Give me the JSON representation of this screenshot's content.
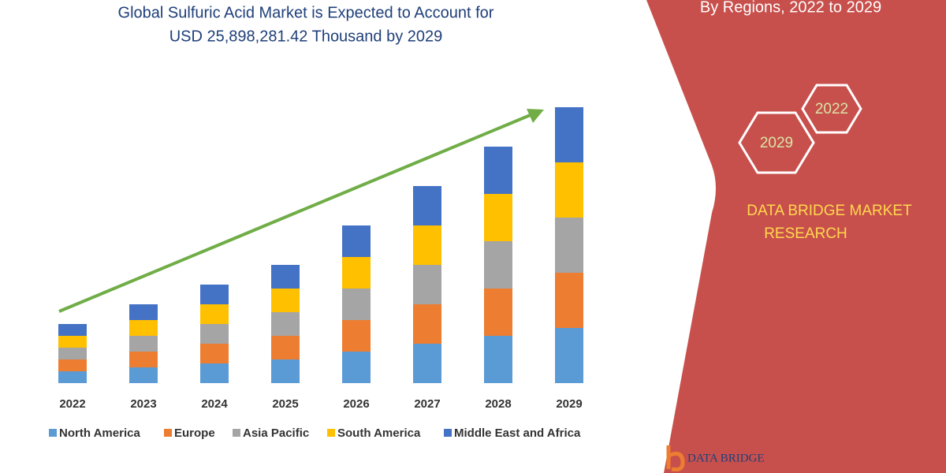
{
  "chart_data": {
    "type": "stacked-bar",
    "title": [
      "Global Sulfuric Acid Market is Expected to Account for",
      "USD 25,898,281.42 Thousand by 2029"
    ],
    "categories": [
      "2022",
      "2023",
      "2024",
      "2025",
      "2026",
      "2027",
      "2028",
      "2029"
    ],
    "series": [
      {
        "name": "North America",
        "color": "#5b9bd5",
        "values": [
          15,
          20,
          25,
          30,
          40,
          50,
          60,
          70
        ]
      },
      {
        "name": "Europe",
        "color": "#ed7d31",
        "values": [
          15,
          20,
          25,
          30,
          40,
          50,
          60,
          70
        ]
      },
      {
        "name": "Asia Pacific",
        "color": "#a5a5a5",
        "values": [
          15,
          20,
          25,
          30,
          40,
          50,
          60,
          70
        ]
      },
      {
        "name": "South America",
        "color": "#ffc000",
        "values": [
          15,
          20,
          25,
          30,
          40,
          50,
          60,
          70
        ]
      },
      {
        "name": "Middle East and Africa",
        "color": "#4472c4",
        "values": [
          15,
          20,
          25,
          30,
          40,
          50,
          60,
          70
        ]
      }
    ],
    "ylim": [
      0,
      350
    ],
    "grid": false,
    "legend": "bottom"
  },
  "panel": {
    "heading": "By Regions, 2022 to 2029",
    "hexagons": [
      "2022",
      "2029"
    ],
    "brand": [
      "DATA BRIDGE MARKET",
      "RESEARCH"
    ],
    "logo": "DATA BRIDGE"
  }
}
